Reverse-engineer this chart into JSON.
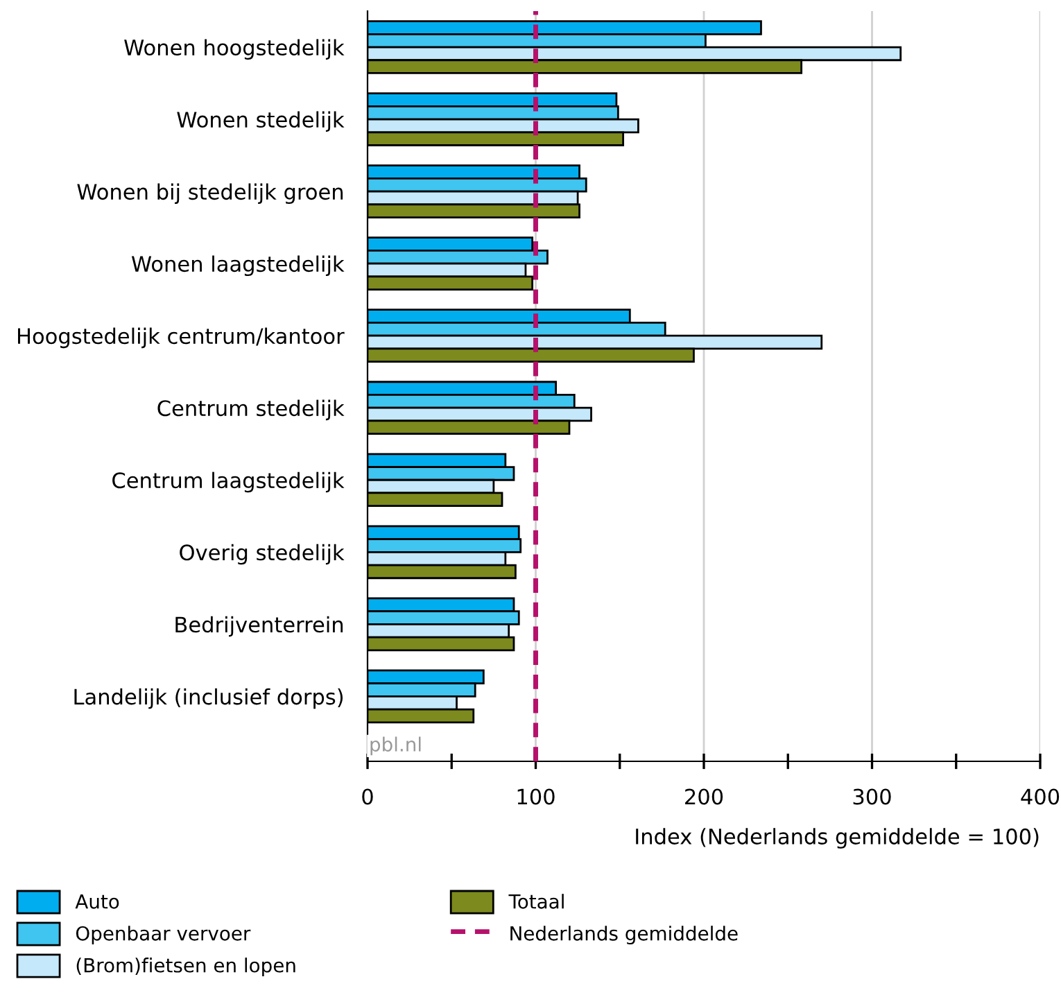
{
  "chart_data": {
    "type": "bar",
    "orientation": "horizontal",
    "xlabel": "Index (Nederlands gemiddelde = 100)",
    "categories": [
      "Wonen hoogstedelijk",
      "Wonen stedelijk",
      "Wonen bij stedelijk groen",
      "Wonen laagstedelijk",
      "Hoogstedelijk centrum/kantoor",
      "Centrum stedelijk",
      "Centrum laagstedelijk",
      "Overig stedelijk",
      "Bedrijventerrein",
      "Landelijk (inclusief dorps)"
    ],
    "series": [
      {
        "name": "Auto",
        "color": "#00aeef",
        "values": [
          234,
          148,
          126,
          98,
          156,
          112,
          82,
          90,
          87,
          69
        ]
      },
      {
        "name": "Openbaar vervoer",
        "color": "#40c4f0",
        "values": [
          201,
          149,
          130,
          107,
          177,
          123,
          87,
          91,
          90,
          64
        ]
      },
      {
        "name": "(Brom)fietsen en lopen",
        "color": "#c5e8fa",
        "values": [
          317,
          161,
          125,
          94,
          270,
          133,
          75,
          82,
          84,
          53
        ]
      },
      {
        "name": "Totaal",
        "color": "#7d8a1e",
        "values": [
          258,
          152,
          126,
          98,
          194,
          120,
          80,
          88,
          87,
          63
        ]
      }
    ],
    "xlim": [
      0,
      400
    ],
    "xticks": [
      0,
      {
        "value": 50,
        "label": null
      },
      100,
      {
        "value": 150,
        "label": null
      },
      200,
      {
        "value": 250,
        "label": null
      },
      300,
      {
        "value": 350,
        "label": null
      },
      400
    ],
    "grid": "x",
    "legend": "bottom",
    "ref_lines": [
      {
        "axis": "x",
        "value": 100,
        "label": "Nederlands gemiddelde",
        "color": "#b5116b",
        "line_style": "dashed"
      }
    ],
    "annotations": [
      "pbl.nl"
    ]
  }
}
